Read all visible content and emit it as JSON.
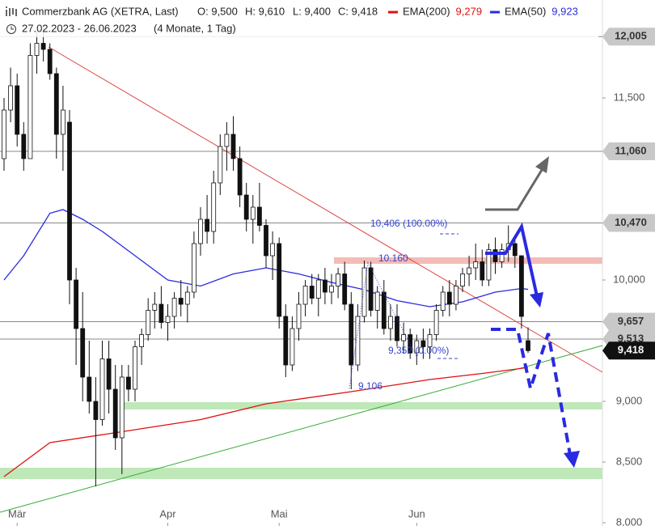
{
  "chart_data": {
    "type": "candlestick",
    "title": "Commerzbank AG (XETRA, Last)",
    "quote": [
      "O: 9,500",
      "H: 9,610",
      "L: 9,400",
      "C: 9,418"
    ],
    "subtitle": "27.02.2023 - 26.06.2023",
    "period": "(4 Monate, 1 Tag)",
    "categories": [
      null,
      null,
      "Mär",
      null,
      null,
      null,
      null,
      null,
      null,
      null,
      null,
      null,
      null,
      null,
      null,
      null,
      null,
      null,
      null,
      null,
      null,
      null,
      null,
      null,
      null,
      "Apr",
      null,
      null,
      null,
      null,
      null,
      null,
      null,
      null,
      null,
      null,
      null,
      null,
      null,
      null,
      null,
      null,
      "Mai",
      null,
      null,
      null,
      null,
      null,
      null,
      null,
      null,
      null,
      null,
      null,
      null,
      null,
      null,
      null,
      null,
      null,
      null,
      null,
      null,
      "Jun",
      null,
      null,
      null,
      null,
      null,
      null,
      null,
      null,
      null,
      null,
      null,
      null,
      null,
      null,
      null,
      null,
      null
    ],
    "candles": {
      "open": [
        11.0,
        11.4,
        11.6,
        11.2,
        11.0,
        11.85,
        11.95,
        11.9,
        11.7,
        11.2,
        11.3,
        10.0,
        9.6,
        9.2,
        9.0,
        8.85,
        9.35,
        9.1,
        8.7,
        9.2,
        9.1,
        9.45,
        9.55,
        9.75,
        9.8,
        9.65,
        9.7,
        9.85,
        9.8,
        9.9,
        10.3,
        10.5,
        10.4,
        10.8,
        11.1,
        11.2,
        11.0,
        10.7,
        10.5,
        10.6,
        10.45,
        10.2,
        10.3,
        9.7,
        9.3,
        9.6,
        9.8,
        9.95,
        9.85,
        10.0,
        9.9,
        9.95,
        10.05,
        9.8,
        9.3,
        9.7,
        10.1,
        9.75,
        9.9,
        9.6,
        9.7,
        9.5,
        9.55,
        9.4,
        9.5,
        9.45,
        9.55,
        9.75,
        9.9,
        9.8,
        9.95,
        10.05,
        10.1,
        10.15,
        10.0,
        10.25,
        10.15,
        10.25,
        10.3,
        10.2,
        9.5
      ],
      "high": [
        11.5,
        11.75,
        11.7,
        11.3,
        11.95,
        12.05,
        12.1,
        11.95,
        11.75,
        11.6,
        11.4,
        10.1,
        9.9,
        9.5,
        9.2,
        9.5,
        9.5,
        9.3,
        9.3,
        9.3,
        9.5,
        9.6,
        9.85,
        9.9,
        9.95,
        9.8,
        9.9,
        10.0,
        9.95,
        10.4,
        10.6,
        10.7,
        10.9,
        11.2,
        11.3,
        11.35,
        11.1,
        10.8,
        10.7,
        10.8,
        10.5,
        10.4,
        10.35,
        9.8,
        9.7,
        9.9,
        10.0,
        10.05,
        10.05,
        10.1,
        10.05,
        10.1,
        10.15,
        9.9,
        9.8,
        10.16,
        10.15,
        9.95,
        10.0,
        9.8,
        9.8,
        9.65,
        9.6,
        9.55,
        9.6,
        9.6,
        9.8,
        9.95,
        10.0,
        10.0,
        10.1,
        10.2,
        10.3,
        10.25,
        10.3,
        10.35,
        10.3,
        10.45,
        10.35,
        10.2,
        9.61
      ],
      "low": [
        10.9,
        11.3,
        11.1,
        10.9,
        11.0,
        11.7,
        11.8,
        11.65,
        11.0,
        10.9,
        9.8,
        9.3,
        9.0,
        8.9,
        8.3,
        8.8,
        8.9,
        8.6,
        8.4,
        9.0,
        9.0,
        9.3,
        9.5,
        9.6,
        9.6,
        9.5,
        9.6,
        9.7,
        9.65,
        9.85,
        10.2,
        10.3,
        10.3,
        10.7,
        10.9,
        10.9,
        10.6,
        10.4,
        10.3,
        10.4,
        10.1,
        10.0,
        9.6,
        9.2,
        9.25,
        9.5,
        9.7,
        9.8,
        9.7,
        9.8,
        9.8,
        9.85,
        9.75,
        9.1,
        9.25,
        9.65,
        9.7,
        9.6,
        9.55,
        9.5,
        9.45,
        9.4,
        9.35,
        9.3,
        9.35,
        9.35,
        9.5,
        9.7,
        9.7,
        9.75,
        9.9,
        9.95,
        10.0,
        9.95,
        9.95,
        10.05,
        10.1,
        10.15,
        10.1,
        9.6,
        9.4
      ],
      "close": [
        11.4,
        11.6,
        11.2,
        11.0,
        11.85,
        11.95,
        11.9,
        11.7,
        11.2,
        11.4,
        10.0,
        9.6,
        9.2,
        9.0,
        8.85,
        9.35,
        9.1,
        8.7,
        9.2,
        9.1,
        9.45,
        9.55,
        9.75,
        9.8,
        9.65,
        9.7,
        9.85,
        9.8,
        9.9,
        10.3,
        10.5,
        10.4,
        10.8,
        11.1,
        11.2,
        11.0,
        10.7,
        10.5,
        10.6,
        10.45,
        10.2,
        10.3,
        9.7,
        9.3,
        9.6,
        9.8,
        9.95,
        9.85,
        10.0,
        9.9,
        9.95,
        10.05,
        9.8,
        9.3,
        9.7,
        10.1,
        9.75,
        9.9,
        9.6,
        9.7,
        9.5,
        9.55,
        9.4,
        9.5,
        9.45,
        9.55,
        9.75,
        9.9,
        9.8,
        9.95,
        10.05,
        10.1,
        10.15,
        10.0,
        10.25,
        10.15,
        10.25,
        10.3,
        10.2,
        9.7,
        9.418
      ]
    },
    "series": [
      {
        "name": "EMA(200)",
        "color": "#e01010",
        "last_label": "9,279",
        "x": [
          0,
          7,
          18,
          30,
          40,
          53,
          65,
          73,
          80
        ],
        "values": [
          8.38,
          8.66,
          8.75,
          8.85,
          8.98,
          9.08,
          9.18,
          9.23,
          9.279
        ]
      },
      {
        "name": "EMA(50)",
        "color": "#2a2ae0",
        "last_label": "9,923",
        "x": [
          0,
          3,
          7,
          9,
          12,
          15,
          20,
          25,
          30,
          35,
          40,
          45,
          50,
          55,
          60,
          65,
          70,
          75,
          79,
          80
        ],
        "values": [
          10.0,
          10.2,
          10.55,
          10.58,
          10.5,
          10.4,
          10.2,
          10.0,
          9.95,
          10.05,
          10.1,
          10.05,
          9.98,
          9.92,
          9.83,
          9.78,
          9.82,
          9.9,
          9.93,
          9.923
        ]
      }
    ],
    "ylim": [
      8,
      12.2
    ],
    "yticks": [
      {
        "value": 8,
        "label": "8,000"
      },
      {
        "value": 8.5,
        "label": "8,500"
      },
      {
        "value": 9,
        "label": "9,000"
      },
      {
        "value": 10,
        "label": "10,000"
      },
      {
        "value": 11.5,
        "label": "11,500"
      }
    ],
    "levels": [
      {
        "value": 12.005,
        "label": "12,005"
      },
      {
        "value": 11.06,
        "label": "11,060"
      },
      {
        "value": 10.47,
        "label": "10,470"
      },
      {
        "value": 9.657,
        "label": "9,657"
      },
      {
        "value": 9.513,
        "label": "9,513"
      }
    ],
    "last": {
      "value": 9.418,
      "label": "9,418"
    },
    "annotations": [
      "10,406 (100.00%)",
      "10.160",
      "9,352 (0.00%)",
      "9.106"
    ]
  }
}
